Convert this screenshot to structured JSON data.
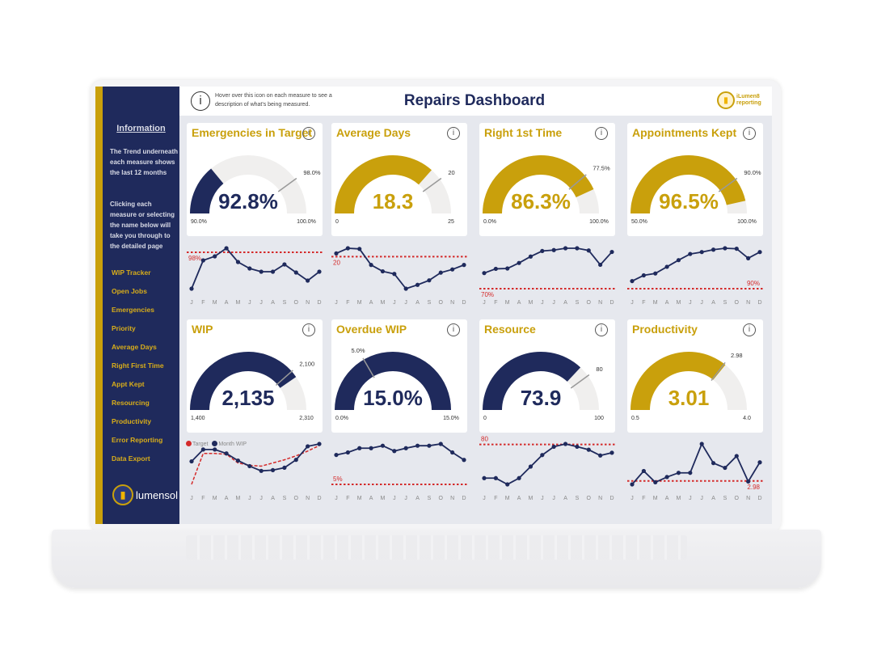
{
  "colors": {
    "navy": "#1f2a5c",
    "gold": "#c9a00c",
    "track": "#f0efee",
    "target": "#d42a2a",
    "background": "#e6e8ee"
  },
  "header": {
    "title": "Repairs Dashboard",
    "info_icon": "info-icon",
    "info_text": "Hover over this icon on each measure to see a description of what's being measured.",
    "logo_text": "iLumen8 reporting"
  },
  "sidebar": {
    "title": "Information",
    "text1": "The Trend underneath each measure shows the last 12 months",
    "text2": "Clicking each measure or selecting the name below will take you through to the detailed page",
    "links": [
      "WIP Tracker",
      "Open Jobs",
      "Emergencies",
      "Priority",
      "Average Days",
      "Right First Time",
      "Appt Kept",
      "Resourcing",
      "Productivity",
      "Error Reporting",
      "Data Export"
    ],
    "logo_text": "lumensol"
  },
  "months": [
    "J",
    "F",
    "M",
    "A",
    "M",
    "J",
    "J",
    "A",
    "S",
    "O",
    "N",
    "D"
  ],
  "legend": {
    "target": "Target",
    "series": "Month WIP"
  },
  "measures": [
    {
      "title": "Emergencies in Target",
      "value": 92.8,
      "display": "92.8%",
      "min_label": "90.0%",
      "max_label": "100.0%",
      "target_label": "98.0%",
      "min": 90,
      "max": 100,
      "target": 98,
      "color": "navy",
      "trend": [
        93.5,
        97.0,
        97.5,
        98.5,
        96.8,
        96.0,
        95.6,
        95.6,
        96.5,
        95.5,
        94.5,
        95.6
      ],
      "trend_target_label": "98%"
    },
    {
      "title": "Average Days",
      "value": 18.3,
      "display": "18.3",
      "min_label": "0",
      "max_label": "25",
      "target_label": "20",
      "min": 0,
      "max": 25,
      "target": 20,
      "color": "gold",
      "trend": [
        20.5,
        21.3,
        21.2,
        18.7,
        17.7,
        17.3,
        15.0,
        15.6,
        16.3,
        17.5,
        18.0,
        18.7
      ],
      "trend_target_label": "20"
    },
    {
      "title": "Right 1st Time",
      "value": 86.3,
      "display": "86.3%",
      "min_label": "0.0%",
      "max_label": "100.0%",
      "target_label": "77.5%",
      "min": 0,
      "max": 100,
      "target": 77.5,
      "color": "gold",
      "trend": [
        78.5,
        80.8,
        81.0,
        84.0,
        87.5,
        90.5,
        91.0,
        92.0,
        92.0,
        90.8,
        83.0,
        90.0
      ],
      "trend_target": 70,
      "trend_target_label": "70%"
    },
    {
      "title": "Appointments Kept",
      "value": 96.5,
      "display": "96.5%",
      "min_label": "50.0%",
      "max_label": "100.0%",
      "target_label": "90.0%",
      "min": 50,
      "max": 100,
      "target": 90,
      "color": "gold",
      "trend": [
        91.6,
        92.8,
        93.2,
        94.6,
        96.0,
        97.3,
        97.7,
        98.2,
        98.5,
        98.4,
        96.4,
        97.7
      ],
      "trend_target_label": "90%"
    },
    {
      "title": "WIP",
      "value": 2135,
      "display": "2,135",
      "min_label": "1,400",
      "max_label": "2,310",
      "target_label": "2,100",
      "min": 1400,
      "max": 2310,
      "target": 2100,
      "color": "navy",
      "trend": [
        2050,
        2125,
        2125,
        2100,
        2055,
        2020,
        1990,
        1995,
        2010,
        2060,
        2145,
        2160
      ],
      "trend_target_series": [
        1905,
        2100,
        2100,
        2095,
        2040,
        2025,
        2020,
        2040,
        2060,
        2085,
        2115,
        2150
      ]
    },
    {
      "title": "Overdue WIP",
      "value": 15,
      "display": "15.0%",
      "min_label": "0.0%",
      "max_label": "15.0%",
      "target_label": "5.0%",
      "min": 0,
      "max": 15,
      "target": 5,
      "color": "navy",
      "trend": [
        13.3,
        14.0,
        15.2,
        15.2,
        15.9,
        14.4,
        15.2,
        15.9,
        15.9,
        16.4,
        14.0,
        11.9
      ],
      "trend_target_label": "5%"
    },
    {
      "title": "Resource",
      "value": 73.9,
      "display": "73.9",
      "min_label": "0",
      "max_label": "100",
      "target_label": "80",
      "min": 0,
      "max": 100,
      "target": 80,
      "color": "navy",
      "trend": [
        65.4,
        65.4,
        62.7,
        65.4,
        70.4,
        75.4,
        79.0,
        80.2,
        79.0,
        77.7,
        75.2,
        76.4
      ],
      "trend_target_label": "80"
    },
    {
      "title": "Productivity",
      "value": 3.01,
      "display": "3.01",
      "min_label": "0.5",
      "max_label": "4.0",
      "target_label": "2.98",
      "min": 0.5,
      "max": 4,
      "target": 2.98,
      "color": "gold",
      "trend": [
        2.85,
        3.36,
        2.93,
        3.13,
        3.29,
        3.29,
        4.39,
        3.66,
        3.48,
        3.93,
        2.96,
        3.69
      ],
      "trend_target_label": "2.98"
    }
  ]
}
